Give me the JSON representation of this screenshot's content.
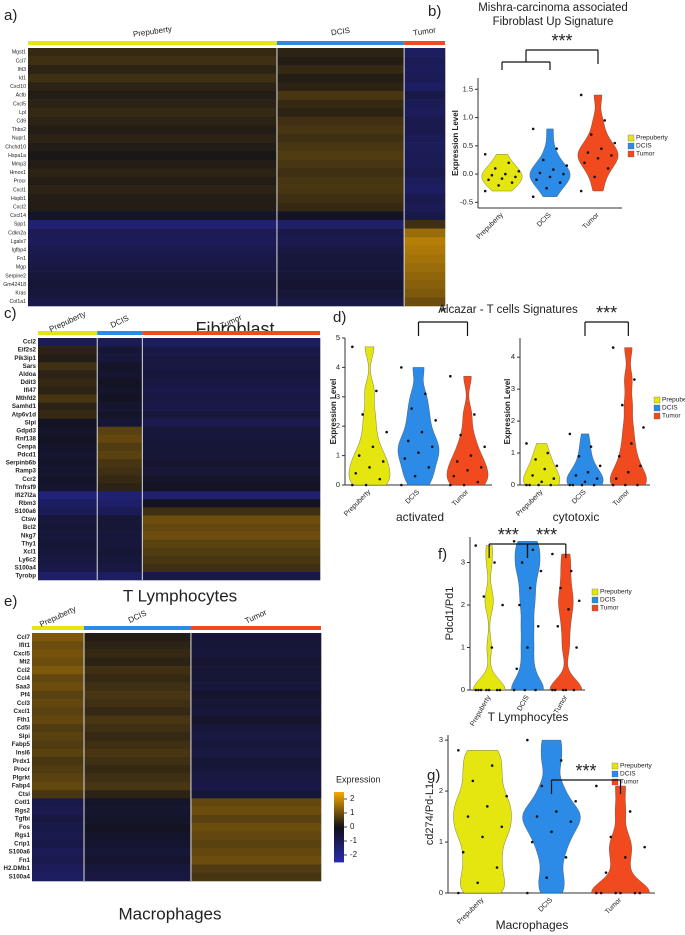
{
  "chart_data": [
    {
      "type": "heatmap",
      "panel": "a)",
      "title": "Fibroblast",
      "categories": [
        "Prepuberty",
        "DCIS",
        "Tumor"
      ],
      "colors": [
        "#e5e510",
        "#2b8be6",
        "#f04a1e"
      ],
      "colorscale": [
        "#2b2bb0",
        "#111118",
        "#f5a800"
      ],
      "clim": [
        -2.5,
        2.5
      ],
      "rows": [
        "Mgst1",
        "Ccl7",
        "Ifit3",
        "Id1",
        "Cxcl10",
        "Actb",
        "Cxcl5",
        "Lpl",
        "Cd9",
        "Thbs2",
        "Nupr1",
        "Chchd10",
        "Hspa1a",
        "Mmp3",
        "Hmox1",
        "Procr",
        "Cxcl1",
        "Hspb1",
        "Cxcl2",
        "Cxcl14",
        "Spp1",
        "Cdkn2a",
        "Lgals7",
        "Igfbp4",
        "Fn1",
        "Mgp",
        "Serpine2",
        "Gm42418",
        "Kras",
        "Col1a1"
      ],
      "values": [
        [
          0.4,
          0.3,
          -1.2
        ],
        [
          0.5,
          0.2,
          -1.0
        ],
        [
          0.3,
          0.4,
          -1.1
        ],
        [
          0.5,
          0.2,
          -1.0
        ],
        [
          0.3,
          0.3,
          -1.2
        ],
        [
          0.2,
          0.6,
          -0.8
        ],
        [
          0.3,
          0.4,
          -1.0
        ],
        [
          0.4,
          0.3,
          -1.1
        ],
        [
          0.3,
          0.5,
          -0.9
        ],
        [
          0.2,
          0.6,
          -0.9
        ],
        [
          0.3,
          0.5,
          -1.0
        ],
        [
          0.2,
          0.6,
          -1.1
        ],
        [
          0.1,
          0.7,
          -1.0
        ],
        [
          0.2,
          0.6,
          -1.0
        ],
        [
          0.3,
          0.5,
          -0.9
        ],
        [
          0.2,
          0.6,
          -1.1
        ],
        [
          0.3,
          0.6,
          -1.2
        ],
        [
          0.2,
          0.5,
          -0.9
        ],
        [
          0.2,
          0.4,
          -1.0
        ],
        [
          -0.3,
          -0.2,
          -0.8
        ],
        [
          -1.5,
          -1.3,
          0.5
        ],
        [
          -1.0,
          -0.8,
          1.5
        ],
        [
          -1.1,
          -0.9,
          1.8
        ],
        [
          -0.9,
          -0.7,
          1.7
        ],
        [
          -0.8,
          -0.6,
          1.6
        ],
        [
          -0.7,
          -0.6,
          1.5
        ],
        [
          -0.6,
          -0.5,
          1.4
        ],
        [
          -0.5,
          -0.4,
          1.3
        ],
        [
          -0.6,
          -0.5,
          1.2
        ],
        [
          -0.8,
          -0.7,
          1.0
        ]
      ]
    },
    {
      "type": "violin",
      "panel": "b)",
      "title": [
        "Mishra-carcinoma associated",
        "Fibroblast Up Signature"
      ],
      "ylabel": "Expression Level",
      "ylim": [
        -0.6,
        1.7
      ],
      "yticks": [
        -0.5,
        {
          "value": 0,
          "label": "0.0"
        },
        0.5,
        {
          "value": 1,
          "label": "1.0"
        },
        1.5
      ],
      "series": [
        {
          "name": "Prepuberty",
          "color": "#e5e510",
          "values": [
            -0.3,
            -0.2,
            -0.15,
            -0.1,
            -0.08,
            -0.05,
            -0.02,
            0.0,
            0.05,
            0.1,
            0.2,
            0.35
          ]
        },
        {
          "name": "DCIS",
          "color": "#2b8be6",
          "values": [
            -0.4,
            -0.25,
            -0.15,
            -0.1,
            -0.05,
            0.0,
            0.02,
            0.08,
            0.15,
            0.25,
            0.45,
            0.8
          ]
        },
        {
          "name": "Tumor",
          "color": "#f04a1e",
          "values": [
            -0.3,
            -0.05,
            0.1,
            0.2,
            0.28,
            0.33,
            0.38,
            0.45,
            0.55,
            0.7,
            0.95,
            1.4
          ]
        }
      ],
      "significance": [
        {
          "label": "***",
          "left": [
            "Prepuberty",
            "DCIS"
          ],
          "right": [
            "Tumor"
          ]
        }
      ]
    },
    {
      "type": "heatmap",
      "panel": "c)",
      "title": "T Lymphocytes",
      "categories": [
        "Prepuberty",
        "DCIS",
        "Tumor"
      ],
      "colors": [
        "#e5e510",
        "#2b8be6",
        "#f04a1e"
      ],
      "colorscale": [
        "#2b2bb0",
        "#111118",
        "#f5a800"
      ],
      "clim": [
        -2.5,
        2.5
      ],
      "rows": [
        "Ccl2",
        "Eif2s2",
        "Pik3ip1",
        "Sars",
        "Aldoa",
        "Ddit3",
        "Ifi47",
        "Mthfd2",
        "Samhd1",
        "Atp6v1d",
        "Slpi",
        "Gdpd3",
        "Rnf138",
        "Cenpa",
        "Pdcd1",
        "Serpinb6b",
        "Ramp3",
        "Ccr2",
        "Tnfrsf9",
        "Ifi27l2a",
        "Rbm3",
        "S100a6",
        "Ctsw",
        "Bcl2",
        "Nkg7",
        "Thy1",
        "Xcl1",
        "Ly6c2",
        "S100a4",
        "Tyrobp"
      ],
      "values": [
        [
          -1.0,
          -1.0,
          -1.2
        ],
        [
          0.3,
          -0.5,
          -0.8
        ],
        [
          0.2,
          -0.6,
          -0.7
        ],
        [
          0.5,
          -0.3,
          -0.7
        ],
        [
          0.3,
          -0.4,
          -0.6
        ],
        [
          0.4,
          -0.2,
          -0.7
        ],
        [
          0.3,
          -0.3,
          -0.8
        ],
        [
          0.6,
          -0.2,
          -0.7
        ],
        [
          0.3,
          -0.4,
          -0.8
        ],
        [
          0.4,
          -0.3,
          -0.6
        ],
        [
          -0.2,
          -0.5,
          -0.9
        ],
        [
          -0.3,
          0.8,
          -0.6
        ],
        [
          -0.2,
          0.9,
          -0.6
        ],
        [
          -0.3,
          0.7,
          -0.5
        ],
        [
          -0.4,
          0.8,
          -0.5
        ],
        [
          -0.3,
          0.6,
          -0.4
        ],
        [
          -0.4,
          0.5,
          -0.5
        ],
        [
          -0.3,
          0.4,
          -0.3
        ],
        [
          -0.4,
          0.3,
          -0.2
        ],
        [
          -1.6,
          -1.5,
          -1.4
        ],
        [
          -1.2,
          -1.3,
          -0.2
        ],
        [
          -1.0,
          -1.0,
          0.5
        ],
        [
          -0.6,
          -0.5,
          1.0
        ],
        [
          -0.5,
          -0.5,
          0.9
        ],
        [
          -0.6,
          -0.6,
          1.0
        ],
        [
          -0.5,
          -0.6,
          0.8
        ],
        [
          -0.6,
          -0.5,
          0.7
        ],
        [
          -0.7,
          -0.6,
          0.6
        ],
        [
          -0.8,
          -0.7,
          0.5
        ],
        [
          -1.3,
          -1.2,
          -0.8
        ]
      ]
    },
    {
      "type": "violin",
      "panel": "d)",
      "title": "Alcazar - T cells Signatures",
      "xlabel": "activated",
      "ylabel": "Expression Level",
      "ylim": [
        0,
        5
      ],
      "yticks": [
        0,
        1,
        2,
        3,
        4,
        5
      ],
      "series": [
        {
          "name": "Prepuberty",
          "color": "#e5e510",
          "values": [
            0,
            0,
            0.2,
            0.4,
            0.6,
            0.8,
            1.0,
            1.3,
            1.8,
            2.4,
            3.2,
            4.7
          ]
        },
        {
          "name": "DCIS",
          "color": "#2b8be6",
          "values": [
            0,
            0.3,
            0.6,
            0.9,
            1.1,
            1.3,
            1.5,
            1.8,
            2.2,
            2.6,
            3.1,
            4.0
          ]
        },
        {
          "name": "Tumor",
          "color": "#f04a1e",
          "values": [
            0,
            0,
            0.1,
            0.3,
            0.5,
            0.6,
            0.8,
            1.0,
            1.3,
            1.7,
            2.4,
            3.7
          ]
        }
      ],
      "significance": [
        {
          "label": "*",
          "left": [
            "DCIS"
          ],
          "right": [
            "Tumor"
          ]
        }
      ]
    },
    {
      "type": "violin",
      "xlabel": "cytotoxic",
      "ylabel": "Expression Level",
      "ylim": [
        0,
        4.6
      ],
      "yticks": [
        0,
        1,
        2,
        3,
        4
      ],
      "series": [
        {
          "name": "Prepuberty",
          "color": "#e5e510",
          "values": [
            0,
            0,
            0,
            0,
            0.1,
            0.2,
            0.3,
            0.5,
            0.6,
            0.8,
            1.0,
            1.3
          ]
        },
        {
          "name": "DCIS",
          "color": "#2b8be6",
          "values": [
            0,
            0,
            0,
            0,
            0.1,
            0.2,
            0.3,
            0.4,
            0.6,
            0.9,
            1.2,
            1.6
          ]
        },
        {
          "name": "Tumor",
          "color": "#f04a1e",
          "values": [
            0,
            0,
            0,
            0.2,
            0.4,
            0.6,
            0.9,
            1.3,
            1.8,
            2.5,
            3.3,
            4.3
          ]
        }
      ],
      "significance": [
        {
          "label": "***",
          "left": [
            "DCIS"
          ],
          "right": [
            "Tumor"
          ]
        }
      ]
    },
    {
      "type": "violin",
      "panel": "f)",
      "xlabel": "T Lymphocytes",
      "ylabel": "Pdcd1/Pd1",
      "ylim": [
        0,
        3.6
      ],
      "yticks": [
        0,
        1,
        2,
        3
      ],
      "series": [
        {
          "name": "Prepuberty",
          "color": "#e5e510",
          "values": [
            0,
            0,
            0,
            0,
            0,
            0,
            0,
            1.0,
            2.0,
            2.2,
            3.0,
            3.4
          ]
        },
        {
          "name": "DCIS",
          "color": "#2b8be6",
          "values": [
            0,
            0,
            0,
            0.5,
            1.0,
            1.5,
            2.0,
            2.4,
            2.8,
            3.0,
            3.3,
            3.5
          ]
        },
        {
          "name": "Tumor",
          "color": "#f04a1e",
          "values": [
            0,
            0,
            0,
            0,
            0,
            1.0,
            1.5,
            1.9,
            2.1,
            2.4,
            2.8,
            3.2
          ]
        }
      ],
      "significance": [
        {
          "label": "***",
          "left": [
            "Prepuberty"
          ],
          "right": [
            "DCIS"
          ]
        },
        {
          "label": "***",
          "left": [
            "DCIS"
          ],
          "right": [
            "Tumor"
          ]
        }
      ]
    },
    {
      "type": "heatmap",
      "panel": "e)",
      "title": "Macrophages",
      "categories": [
        "Prepuberty",
        "DCIS",
        "Tumor"
      ],
      "colors": [
        "#e5e510",
        "#2b8be6",
        "#f04a1e"
      ],
      "colorscale": [
        "#2b2bb0",
        "#111118",
        "#f5a800"
      ],
      "clim": [
        -2.5,
        2.5
      ],
      "legend_title": "Expression",
      "cticks": [
        2,
        1,
        0,
        -1,
        -2
      ],
      "rows": [
        "Ccl7",
        "Ifit1",
        "Cxcl5",
        "Mt2",
        "Ccl2",
        "Ccl4",
        "Saa3",
        "Pf4",
        "Ccl3",
        "Cxcl1",
        "Fth1",
        "Cd5l",
        "Slpi",
        "Fabp5",
        "Insl6",
        "Prdx1",
        "Procr",
        "Plgrkt",
        "Fabp4",
        "Ctsl",
        "Cotl1",
        "Rgs2",
        "Tgfbi",
        "Fos",
        "Rgs1",
        "Crip1",
        "S100a6",
        "Fn1",
        "H2.DMb1",
        "S100a4"
      ],
      "values": [
        [
          1.2,
          0.2,
          -0.6
        ],
        [
          1.0,
          0.3,
          -0.5
        ],
        [
          1.1,
          0.4,
          -0.6
        ],
        [
          1.0,
          0.3,
          -0.4
        ],
        [
          1.2,
          0.5,
          -0.5
        ],
        [
          0.9,
          0.4,
          -0.5
        ],
        [
          1.0,
          0.5,
          -0.6
        ],
        [
          0.8,
          0.6,
          -0.4
        ],
        [
          0.9,
          0.5,
          -0.5
        ],
        [
          0.8,
          0.4,
          -0.6
        ],
        [
          0.9,
          0.6,
          -0.3
        ],
        [
          0.7,
          0.5,
          -0.6
        ],
        [
          0.8,
          0.4,
          -0.7
        ],
        [
          0.7,
          0.5,
          -0.6
        ],
        [
          0.8,
          0.6,
          -0.7
        ],
        [
          0.6,
          0.5,
          -0.5
        ],
        [
          0.7,
          0.4,
          -0.6
        ],
        [
          0.8,
          0.5,
          -0.7
        ],
        [
          0.9,
          0.6,
          -0.8
        ],
        [
          0.6,
          0.3,
          -0.5
        ],
        [
          -0.8,
          -0.3,
          0.9
        ],
        [
          -0.9,
          -0.4,
          1.0
        ],
        [
          -0.7,
          -0.3,
          0.8
        ],
        [
          -0.8,
          -0.2,
          1.0
        ],
        [
          -0.9,
          -0.3,
          0.9
        ],
        [
          -0.8,
          -0.4,
          0.8
        ],
        [
          -1.0,
          -0.5,
          0.9
        ],
        [
          -0.9,
          -0.4,
          1.0
        ],
        [
          -1.1,
          -0.6,
          0.7
        ],
        [
          -1.2,
          -0.7,
          0.6
        ]
      ]
    },
    {
      "type": "violin",
      "panel": "g)",
      "xlabel": "Macrophages",
      "ylabel": "cd274/Pd-L1",
      "ylim": [
        0,
        3.1
      ],
      "yticks": [
        0,
        1,
        2,
        3
      ],
      "series": [
        {
          "name": "Prepuberty",
          "color": "#e5e510",
          "values": [
            0,
            0.2,
            0.5,
            0.8,
            1.1,
            1.3,
            1.5,
            1.7,
            1.9,
            2.2,
            2.5,
            2.8
          ]
        },
        {
          "name": "DCIS",
          "color": "#2b8be6",
          "values": [
            0,
            0.3,
            0.7,
            1.0,
            1.2,
            1.4,
            1.5,
            1.6,
            1.8,
            2.1,
            2.6,
            3.0
          ]
        },
        {
          "name": "Tumor",
          "color": "#f04a1e",
          "values": [
            0,
            0,
            0,
            0,
            0,
            0,
            0.4,
            0.7,
            0.9,
            1.1,
            1.6,
            2.1
          ]
        }
      ],
      "significance": [
        {
          "label": "***",
          "left": [
            "DCIS"
          ],
          "right": [
            "Tumor"
          ]
        }
      ]
    }
  ]
}
